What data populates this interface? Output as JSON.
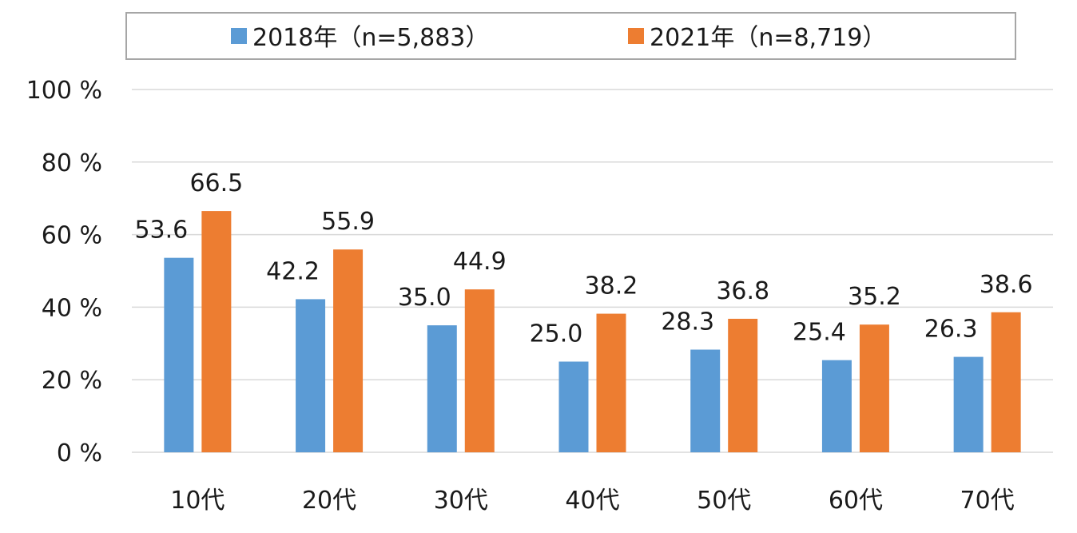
{
  "chart_data": {
    "type": "bar",
    "categories": [
      "10代",
      "20代",
      "30代",
      "40代",
      "50代",
      "60代",
      "70代"
    ],
    "series": [
      {
        "name": "2018年（n=5,883）",
        "color": "#5b9bd5",
        "values": [
          53.6,
          42.2,
          35.0,
          25.0,
          28.3,
          25.4,
          26.3
        ],
        "labels": [
          "53.6",
          "42.2",
          "35.0",
          "25.0",
          "28.3",
          "25.4",
          "26.3"
        ]
      },
      {
        "name": "2021年（n=8,719）",
        "color": "#ed7d31",
        "values": [
          66.5,
          55.9,
          44.9,
          38.2,
          36.8,
          35.2,
          38.6
        ],
        "labels": [
          "66.5",
          "55.9",
          "44.9",
          "38.2",
          "36.8",
          "35.2",
          "38.6"
        ]
      }
    ],
    "yticks": [
      0,
      20,
      40,
      60,
      80,
      100
    ],
    "ytick_labels": [
      "0 %",
      "20 %",
      "40 %",
      "60 %",
      "80 %",
      "100 %"
    ],
    "ylim": [
      0,
      100
    ],
    "grid": true,
    "legend_position": "top"
  }
}
